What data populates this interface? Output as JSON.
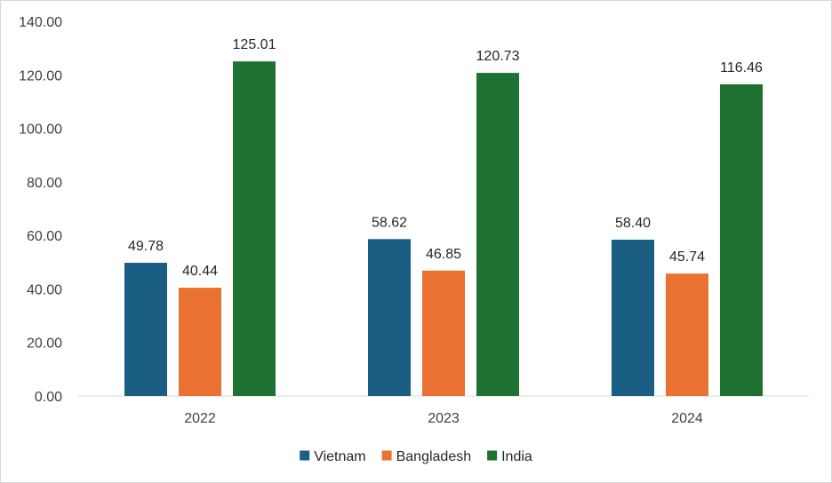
{
  "chart_data": {
    "type": "bar",
    "categories": [
      "2022",
      "2023",
      "2024"
    ],
    "series": [
      {
        "name": "Vietnam",
        "values": [
          49.78,
          58.62,
          58.4
        ],
        "labels": [
          "49.78",
          "58.62",
          "58.40"
        ],
        "color": "#1a5e84"
      },
      {
        "name": "Bangladesh",
        "values": [
          40.44,
          46.85,
          45.74
        ],
        "labels": [
          "40.44",
          "46.85",
          "45.74"
        ],
        "color": "#e97132"
      },
      {
        "name": "India",
        "values": [
          125.01,
          120.73,
          116.46
        ],
        "labels": [
          "125.01",
          "120.73",
          "116.46"
        ],
        "color": "#1e7131"
      }
    ],
    "ylim": [
      0,
      140
    ],
    "yticks": [
      "0.00",
      "20.00",
      "40.00",
      "60.00",
      "80.00",
      "100.00",
      "120.00",
      "140.00"
    ],
    "grid": false,
    "legend_position": "bottom"
  }
}
